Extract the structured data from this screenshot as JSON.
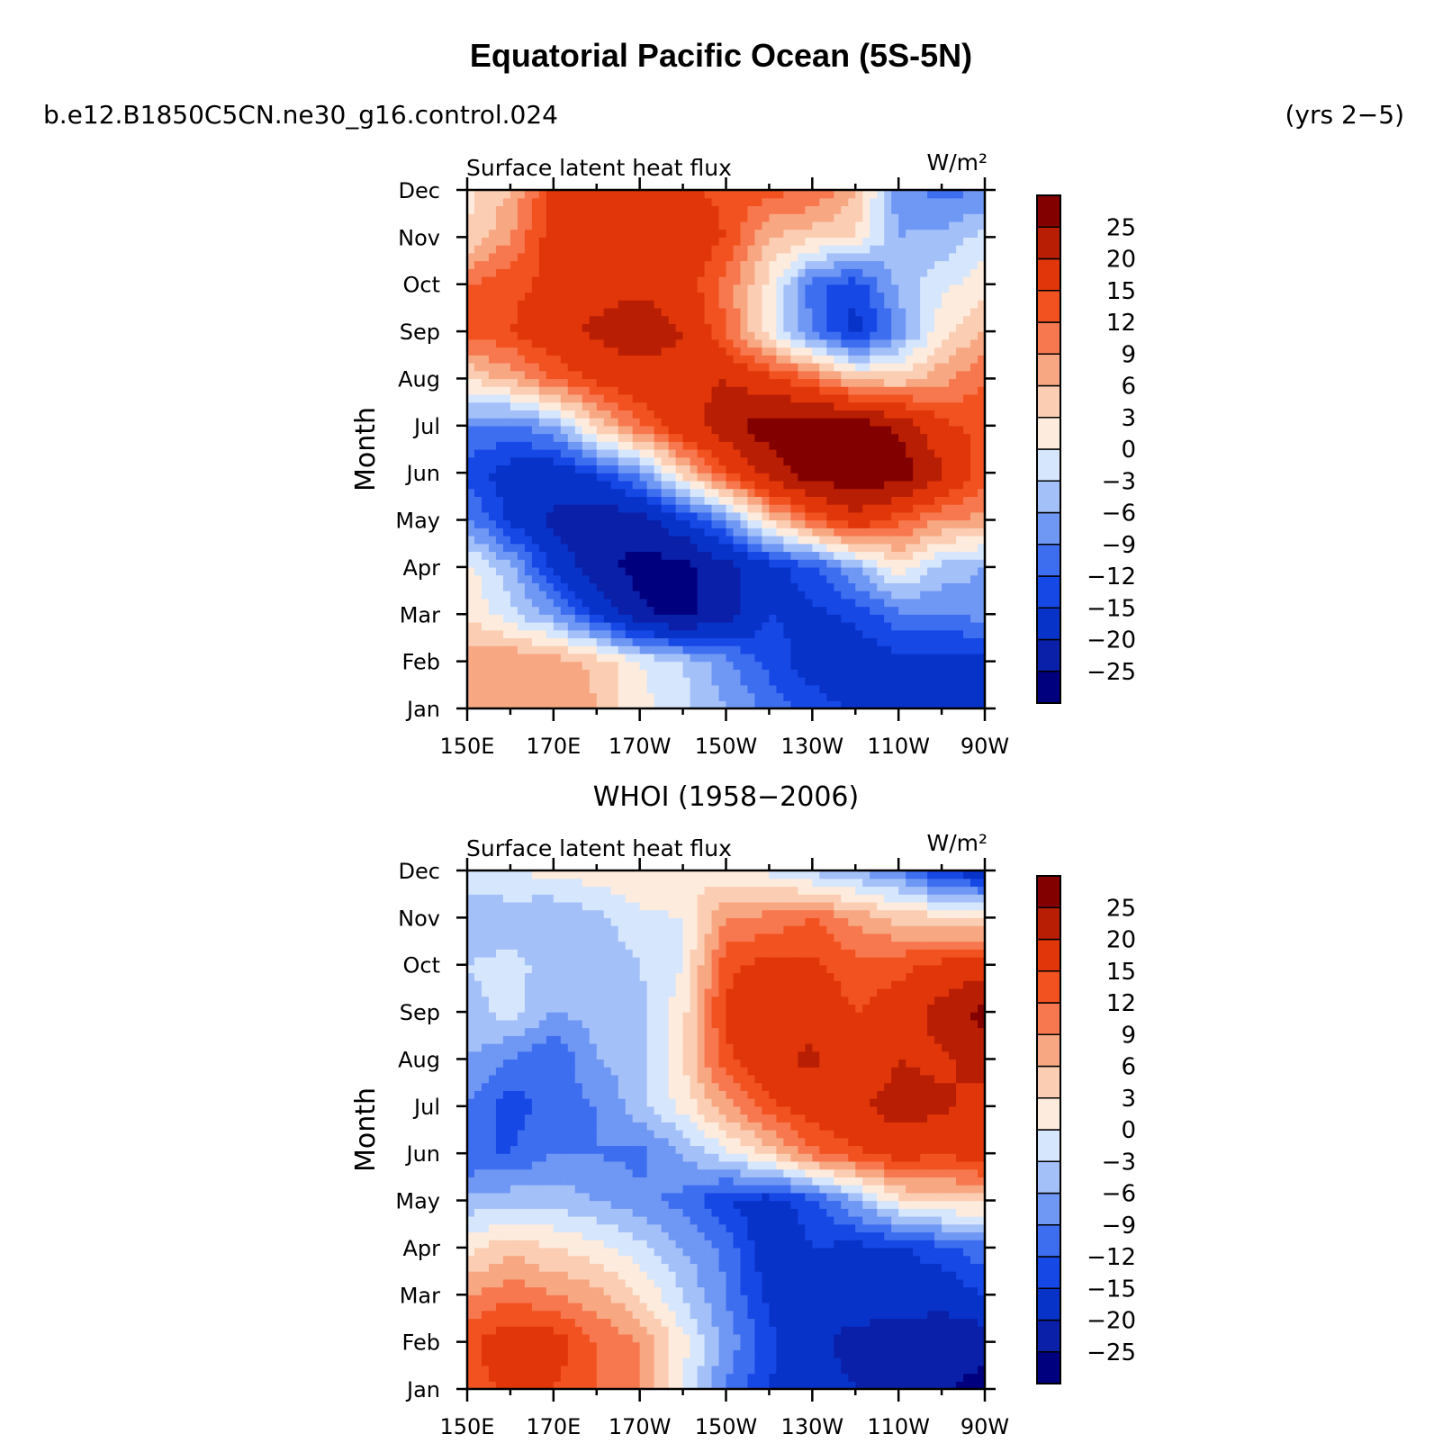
{
  "figure": {
    "title": "Equatorial Pacific Ocean (5S-5N)",
    "case_label": "b.e12.B1850C5CN.ne30_g16.control.024",
    "years_label": "(yrs 2−5)"
  },
  "colors": {
    "palette": [
      "#00007e",
      "#0b20a8",
      "#0833c9",
      "#1648e6",
      "#3e6ef0",
      "#6f97f4",
      "#a4c0f9",
      "#d6e6fd",
      "#fdebdd",
      "#fbcdb3",
      "#f7a882",
      "#f7784f",
      "#f1521f",
      "#e13609",
      "#b81e04",
      "#830000"
    ],
    "frame": "#000000"
  },
  "chart_data": [
    {
      "type": "heatmap",
      "panel_title": "",
      "left_label": "Surface latent heat flux",
      "right_label": "W/m²",
      "ylabel": "Month",
      "x_ticks": [
        "150E",
        "170E",
        "170W",
        "150W",
        "130W",
        "110W",
        "90W"
      ],
      "y_ticks": [
        "Jan",
        "Feb",
        "Mar",
        "Apr",
        "May",
        "Jun",
        "Jul",
        "Aug",
        "Sep",
        "Oct",
        "Nov",
        "Dec"
      ],
      "x_lon_range": [
        150,
        270
      ],
      "colorbar_levels": [
        "25",
        "20",
        "15",
        "12",
        "9",
        "6",
        "3",
        "0",
        "−3",
        "−6",
        "−9",
        "−12",
        "−15",
        "−20",
        "−25"
      ],
      "level_values": [
        -25,
        -20,
        -15,
        -12,
        -9,
        -6,
        -3,
        0,
        3,
        6,
        9,
        12,
        15,
        20,
        25
      ],
      "grid_x": [
        "150E",
        "160E",
        "170E",
        "180",
        "170W",
        "160W",
        "150W",
        "140W",
        "130W",
        "120W",
        "110W",
        "100W",
        "90W"
      ],
      "values": [
        [
          7,
          8,
          9,
          6,
          1,
          -2,
          -6,
          -10,
          -13,
          -16,
          -17,
          -17,
          -19
        ],
        [
          7,
          9,
          8,
          5,
          0,
          -3,
          -8,
          -13,
          -17,
          -18,
          -16,
          -17,
          -17
        ],
        [
          3,
          -2,
          -7,
          -15,
          -24,
          -27,
          -22,
          -15,
          -16,
          -14,
          -10,
          -9,
          -8
        ],
        [
          1,
          -5,
          -16,
          -23,
          -27,
          -27,
          -22,
          -17,
          -13,
          -6,
          2,
          -4,
          -6
        ],
        [
          -8,
          -16,
          -21,
          -24,
          -22,
          -16,
          -8,
          4,
          12,
          18,
          13,
          9,
          8
        ],
        [
          -13,
          -17,
          -18,
          -14,
          -8,
          4,
          14,
          22,
          28,
          29,
          28,
          21,
          13
        ],
        [
          -9,
          -10,
          -6,
          4,
          12,
          18,
          23,
          28,
          29,
          28,
          24,
          16,
          14
        ],
        [
          3,
          7,
          12,
          16,
          18,
          18,
          20,
          16,
          12,
          5,
          4,
          8,
          12
        ],
        [
          13,
          15,
          18,
          21,
          23,
          20,
          12,
          1,
          -9,
          -17,
          -8,
          2,
          6
        ],
        [
          12,
          14,
          16,
          18,
          19,
          17,
          11,
          2,
          -11,
          -14,
          -5,
          -1,
          2
        ],
        [
          3,
          9,
          17,
          20,
          19,
          18,
          15,
          6,
          4,
          3,
          -6,
          -5,
          -2
        ],
        [
          2,
          6,
          16,
          17,
          17,
          16,
          14,
          13,
          12,
          6,
          -8,
          -10,
          -9
        ]
      ]
    },
    {
      "type": "heatmap",
      "panel_title": "WHOI (1958−2006)",
      "left_label": "Surface latent heat flux",
      "right_label": "W/m²",
      "ylabel": "Month",
      "x_ticks": [
        "150E",
        "170E",
        "170W",
        "150W",
        "130W",
        "110W",
        "90W"
      ],
      "y_ticks": [
        "Jan",
        "Feb",
        "Mar",
        "Apr",
        "May",
        "Jun",
        "Jul",
        "Aug",
        "Sep",
        "Oct",
        "Nov",
        "Dec"
      ],
      "x_lon_range": [
        150,
        270
      ],
      "colorbar_levels": [
        "25",
        "20",
        "15",
        "12",
        "9",
        "6",
        "3",
        "0",
        "−3",
        "−6",
        "−9",
        "−12",
        "−15",
        "−20",
        "−25"
      ],
      "level_values": [
        -25,
        -20,
        -15,
        -12,
        -9,
        -6,
        -3,
        0,
        3,
        6,
        9,
        12,
        15,
        20,
        25
      ],
      "grid_x": [
        "150E",
        "160E",
        "170E",
        "180",
        "170W",
        "160W",
        "150W",
        "140W",
        "130W",
        "120W",
        "110W",
        "100W",
        "90W"
      ],
      "values": [
        [
          13,
          16,
          15,
          12,
          9,
          0,
          -9,
          -15,
          -18,
          -20,
          -22,
          -24,
          -27
        ],
        [
          14,
          18,
          17,
          12,
          9,
          1,
          -7,
          -14,
          -18,
          -22,
          -24,
          -24,
          -23
        ],
        [
          9,
          11,
          9,
          7,
          3,
          -3,
          -9,
          -16,
          -18,
          -17,
          -15,
          -18,
          -15
        ],
        [
          2,
          5,
          3,
          1,
          -2,
          -6,
          -10,
          -18,
          -15,
          -16,
          -16,
          -13,
          -10
        ],
        [
          -5,
          -4,
          -4,
          -6,
          -8,
          -10,
          -15,
          -17,
          -13,
          -6,
          2,
          4,
          4
        ],
        [
          -12,
          -12,
          -9,
          -9,
          -10,
          -6,
          -1,
          4,
          11,
          14,
          17,
          15,
          18
        ],
        [
          -9,
          -14,
          -10,
          -9,
          -4,
          1,
          8,
          14,
          17,
          19,
          22,
          21,
          18
        ],
        [
          -6,
          -9,
          -12,
          -6,
          -5,
          3,
          14,
          19,
          21,
          16,
          20,
          19,
          22
        ],
        [
          -4,
          -2,
          -6,
          -5,
          -4,
          2,
          16,
          18,
          18,
          15,
          17,
          22,
          27
        ],
        [
          -3,
          -2,
          -4,
          -5,
          -3,
          0,
          14,
          16,
          16,
          13,
          14,
          16,
          17
        ],
        [
          -5,
          -5,
          -6,
          -4,
          -1,
          0,
          9,
          10,
          12,
          8,
          5,
          4,
          3
        ],
        [
          -1,
          0,
          1,
          2,
          3,
          3,
          1,
          -1,
          -4,
          -6,
          -9,
          -15,
          -18
        ]
      ]
    }
  ]
}
